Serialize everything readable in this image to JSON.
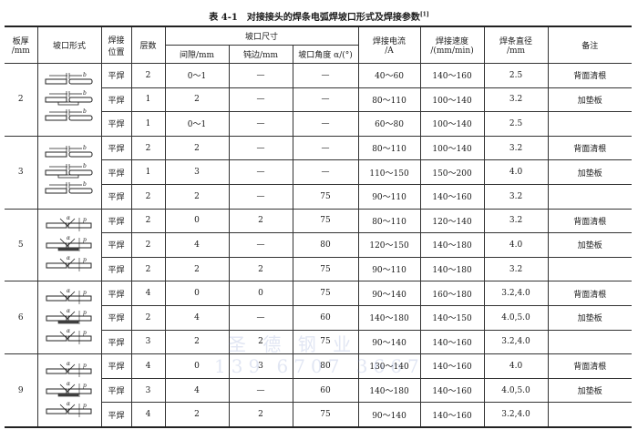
{
  "title": "表 4-1　对接接头的焊条电弧焊坡口形式及焊接参数",
  "title_ref": "[1]",
  "headers": {
    "thickness": "板厚",
    "thickness_unit": "/mm",
    "groove_form": "坡口形式",
    "position": "焊接",
    "position2": "位置",
    "layers": "层数",
    "groove_size": "坡口尺寸",
    "gap": "间隙/mm",
    "root_face": "钝边/mm",
    "angle": "坡口角度 α/(°)",
    "current": "焊接电流",
    "current_unit": "/A",
    "speed": "焊接速度",
    "speed_unit": "/(mm/min)",
    "diameter": "焊条直径",
    "diameter_unit": "/mm",
    "remark": "备注"
  },
  "groups": [
    {
      "thickness": "2",
      "diagram": "square-butt",
      "rows": [
        {
          "position": "平焊",
          "layers": "2",
          "gap": "0～1",
          "root_face": "—",
          "angle": "—",
          "current": "40～60",
          "speed": "140～160",
          "diameter": "2.5",
          "remark": "背面清根"
        },
        {
          "position": "平焊",
          "layers": "1",
          "gap": "2",
          "root_face": "—",
          "angle": "—",
          "current": "80～110",
          "speed": "100～140",
          "diameter": "3.2",
          "remark": "加垫板"
        },
        {
          "position": "平焊",
          "layers": "1",
          "gap": "0～1",
          "root_face": "—",
          "angle": "—",
          "current": "60～80",
          "speed": "100～140",
          "diameter": "2.5",
          "remark": ""
        }
      ]
    },
    {
      "thickness": "3",
      "diagram": "square-butt",
      "rows": [
        {
          "position": "平焊",
          "layers": "2",
          "gap": "2",
          "root_face": "—",
          "angle": "—",
          "current": "80～110",
          "speed": "100～140",
          "diameter": "3.2",
          "remark": "背面清根"
        },
        {
          "position": "平焊",
          "layers": "1",
          "gap": "3",
          "root_face": "—",
          "angle": "—",
          "current": "110～150",
          "speed": "150～200",
          "diameter": "4.0",
          "remark": "加垫板"
        },
        {
          "position": "平焊",
          "layers": "2",
          "gap": "2",
          "root_face": "—",
          "angle": "75",
          "current": "90～110",
          "speed": "140～160",
          "diameter": "3.2",
          "remark": ""
        }
      ]
    },
    {
      "thickness": "5",
      "diagram": "v-groove",
      "rows": [
        {
          "position": "平焊",
          "layers": "2",
          "gap": "0",
          "root_face": "2",
          "angle": "75",
          "current": "80～110",
          "speed": "120～140",
          "diameter": "3.2",
          "remark": "背面清根"
        },
        {
          "position": "平焊",
          "layers": "2",
          "gap": "4",
          "root_face": "—",
          "angle": "80",
          "current": "120～150",
          "speed": "140～180",
          "diameter": "4.0",
          "remark": "加垫板"
        },
        {
          "position": "平焊",
          "layers": "2",
          "gap": "2",
          "root_face": "2",
          "angle": "75",
          "current": "90～110",
          "speed": "140～180",
          "diameter": "3.2",
          "remark": ""
        }
      ]
    },
    {
      "thickness": "6",
      "diagram": "v-groove",
      "rows": [
        {
          "position": "平焊",
          "layers": "4",
          "gap": "0",
          "root_face": "0",
          "angle": "75",
          "current": "90～140",
          "speed": "160～180",
          "diameter": "3.2,4.0",
          "remark": "背面清根"
        },
        {
          "position": "平焊",
          "layers": "2",
          "gap": "4",
          "root_face": "—",
          "angle": "60",
          "current": "140～180",
          "speed": "140～150",
          "diameter": "4.0,5.0",
          "remark": "加垫板"
        },
        {
          "position": "平焊",
          "layers": "3",
          "gap": "2",
          "root_face": "2",
          "angle": "75",
          "current": "90～140",
          "speed": "140～160",
          "diameter": "3.2,4.0",
          "remark": ""
        }
      ]
    },
    {
      "thickness": "9",
      "diagram": "v-groove",
      "rows": [
        {
          "position": "平焊",
          "layers": "4",
          "gap": "0",
          "root_face": "3",
          "angle": "80",
          "current": "130～140",
          "speed": "140～160",
          "diameter": "4.0",
          "remark": "背面清根"
        },
        {
          "position": "平焊",
          "layers": "3",
          "gap": "4",
          "root_face": "—",
          "angle": "60",
          "current": "140～180",
          "speed": "140～160",
          "diameter": "4.0,5.0",
          "remark": "加垫板"
        },
        {
          "position": "平焊",
          "layers": "4",
          "gap": "2",
          "root_face": "2",
          "angle": "75",
          "current": "90～140",
          "speed": "140～160",
          "diameter": "3.2,4.0",
          "remark": ""
        }
      ]
    }
  ],
  "watermark": {
    "name": "圣 德 钢 业",
    "phone": "139 6707 3667"
  }
}
